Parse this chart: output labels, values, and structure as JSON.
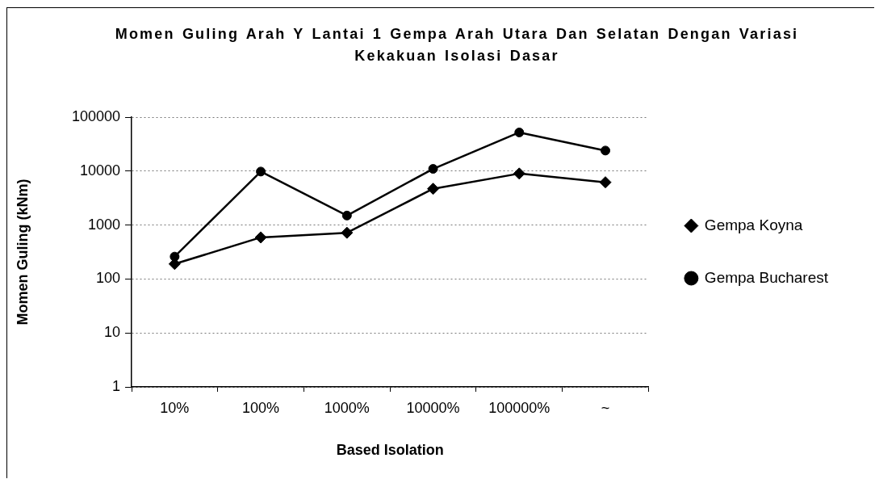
{
  "chart_data": {
    "type": "line",
    "title": "Momen Guling Arah Y Lantai 1 Gempa Arah Utara Dan Selatan Dengan Variasi Kekakuan Isolasi Dasar",
    "xlabel": "Based Isolation",
    "ylabel": "Momen Guling (kNm)",
    "categories": [
      "10%",
      "100%",
      "1000%",
      "10000%",
      "100000%",
      "~"
    ],
    "series": [
      {
        "name": "Gempa Koyna",
        "color": "#000000",
        "marker": "diamond",
        "values": [
          190,
          590,
          720,
          4700,
          9000,
          6200
        ]
      },
      {
        "name": "Gempa Bucharest",
        "color": "#000000",
        "marker": "circle",
        "values": [
          260,
          9800,
          1500,
          11000,
          52000,
          24000
        ]
      }
    ],
    "log": "y",
    "ylim": [
      1,
      100000
    ],
    "yticks": [
      1,
      10,
      100,
      1000,
      10000,
      100000
    ],
    "grid": "y",
    "legend": "right",
    "line_style": "solid"
  }
}
